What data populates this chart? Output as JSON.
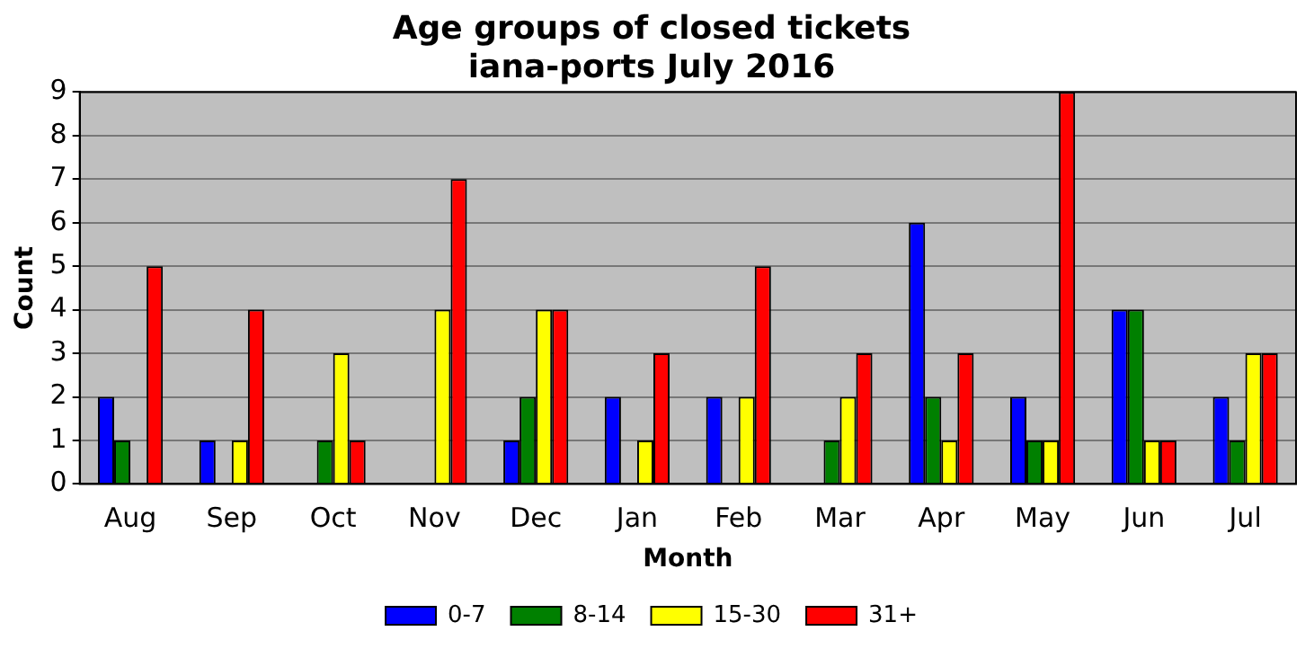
{
  "chart_data": {
    "type": "bar",
    "title": "Age groups of closed tickets\niana-ports July 2016",
    "xlabel": "Month",
    "ylabel": "Count",
    "categories": [
      "Aug",
      "Sep",
      "Oct",
      "Nov",
      "Dec",
      "Jan",
      "Feb",
      "Mar",
      "Apr",
      "May",
      "Jun",
      "Jul"
    ],
    "series": [
      {
        "name": "0-7",
        "color": "#0000ff",
        "values": [
          2,
          1,
          0,
          0,
          1,
          2,
          2,
          0,
          6,
          2,
          4,
          2
        ]
      },
      {
        "name": "8-14",
        "color": "#008000",
        "values": [
          1,
          0,
          1,
          0,
          2,
          0,
          0,
          1,
          2,
          1,
          4,
          1
        ]
      },
      {
        "name": "15-30",
        "color": "#ffff00",
        "values": [
          0,
          1,
          3,
          4,
          4,
          1,
          2,
          2,
          1,
          1,
          1,
          3
        ]
      },
      {
        "name": "31+",
        "color": "#ff0000",
        "values": [
          5,
          4,
          1,
          7,
          4,
          3,
          5,
          3,
          3,
          9,
          1,
          3
        ]
      }
    ],
    "ylim": [
      0,
      9
    ],
    "yticks": [
      0,
      1,
      2,
      3,
      4,
      5,
      6,
      7,
      8,
      9
    ],
    "grid": "y",
    "legend": "bottom"
  }
}
